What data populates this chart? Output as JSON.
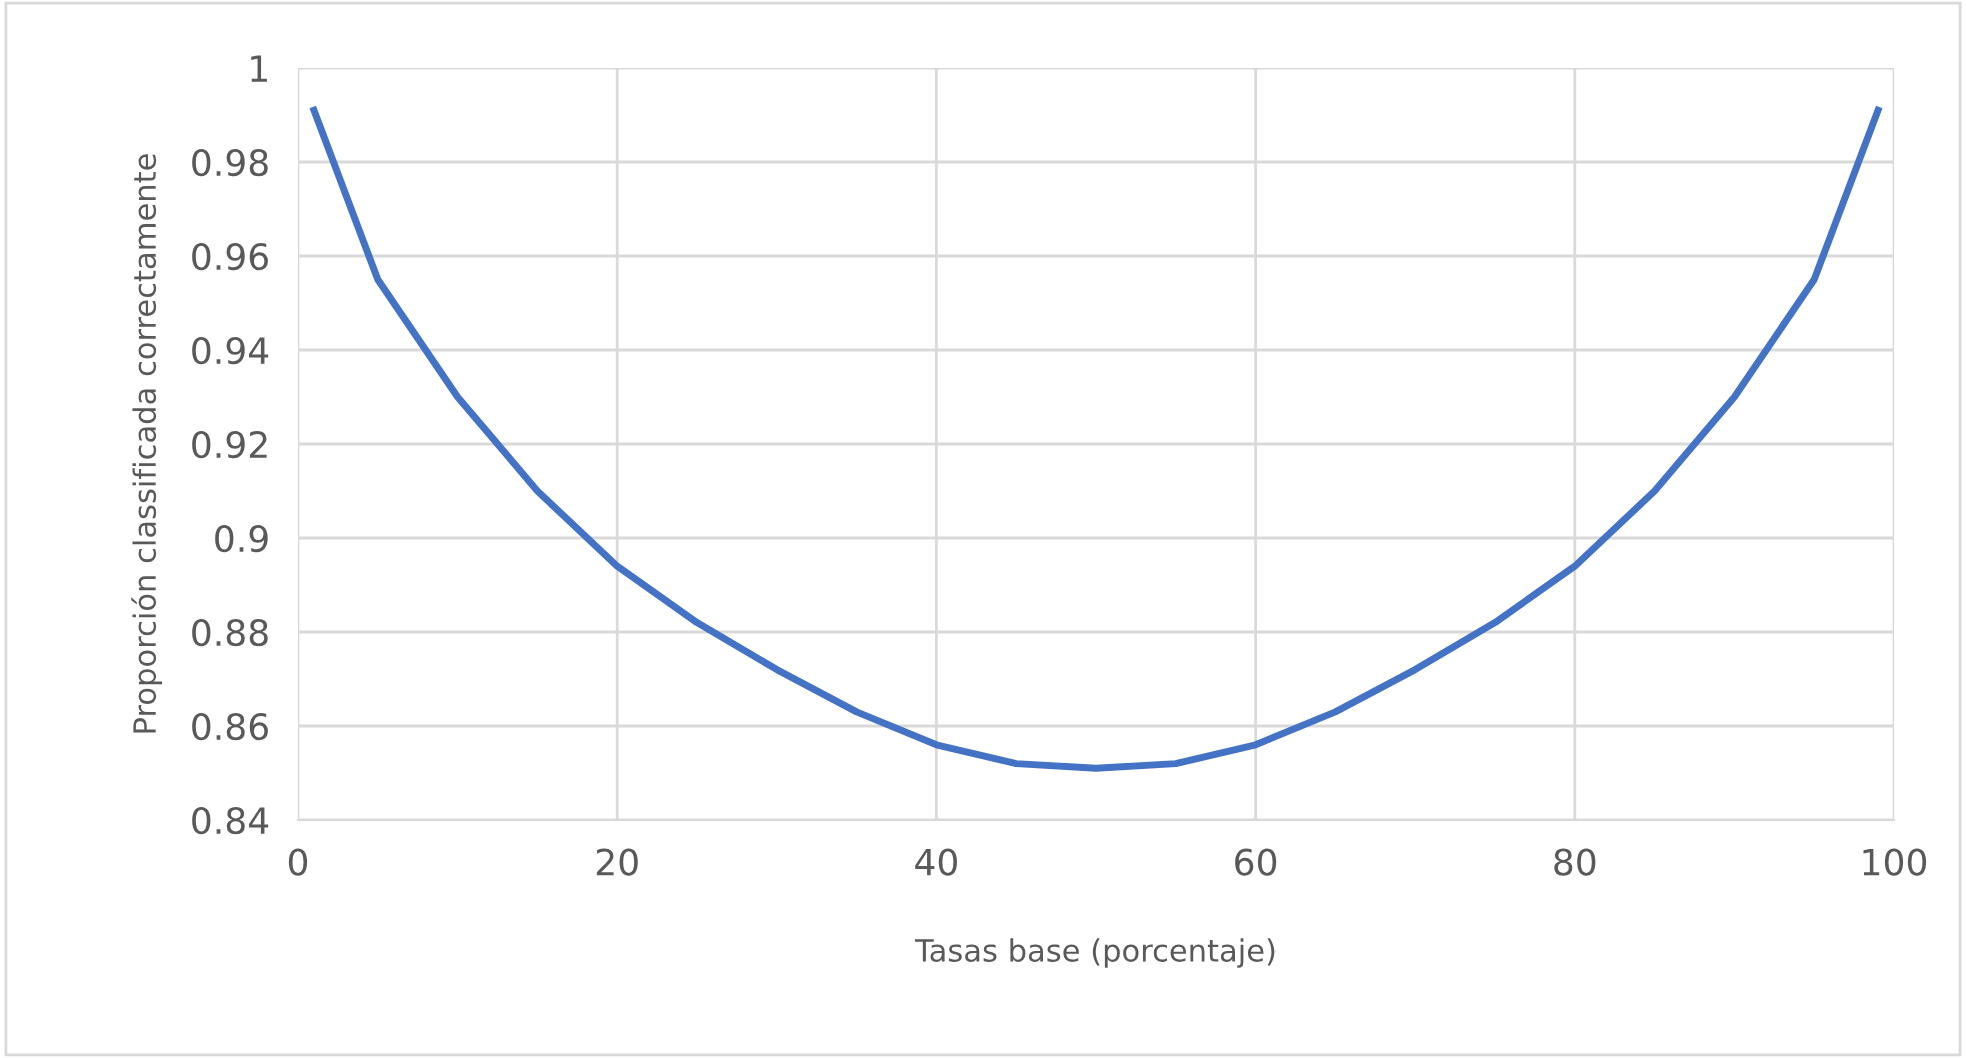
{
  "chart_data": {
    "type": "line",
    "xlabel": "Tasas base (porcentaje)",
    "ylabel": "Proporción classificada correctamente",
    "x": [
      1,
      5,
      10,
      15,
      20,
      25,
      30,
      35,
      40,
      45,
      50,
      55,
      60,
      65,
      70,
      75,
      80,
      85,
      90,
      95,
      99
    ],
    "series": [
      {
        "color": "#4472c4",
        "values": [
          0.991,
          0.955,
          0.93,
          0.91,
          0.894,
          0.882,
          0.872,
          0.863,
          0.856,
          0.852,
          0.851,
          0.852,
          0.856,
          0.863,
          0.872,
          0.882,
          0.894,
          0.91,
          0.93,
          0.955,
          0.991
        ]
      }
    ],
    "xlim": [
      0,
      100
    ],
    "xticks": [
      0,
      20,
      40,
      60,
      80,
      100
    ],
    "ylim": [
      0.84,
      1
    ],
    "yticks": [
      0.84,
      0.86,
      0.88,
      0.9,
      0.92,
      0.94,
      0.96,
      0.98,
      1
    ],
    "grid": true,
    "marker": "none",
    "line_style": "solid"
  }
}
